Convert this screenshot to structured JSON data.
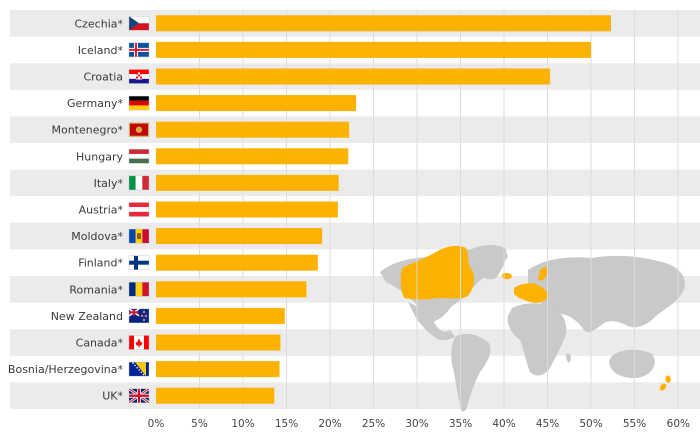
{
  "chart_data": {
    "type": "bar",
    "orientation": "horizontal",
    "categories": [
      "Czechia*",
      "Iceland*",
      "Croatia",
      "Germany*",
      "Montenegro*",
      "Hungary",
      "Italy*",
      "Austria*",
      "Moldova*",
      "Finland*",
      "Romania*",
      "New Zealand",
      "Canada*",
      "Bosnia/Herzegovina*",
      "UK*"
    ],
    "flags": [
      "czechia-flag",
      "iceland-flag",
      "croatia-flag",
      "germany-flag",
      "montenegro-flag",
      "hungary-flag",
      "italy-flag",
      "austria-flag",
      "moldova-flag",
      "finland-flag",
      "romania-flag",
      "new-zealand-flag",
      "canada-flag",
      "bosnia-herzegovina-flag",
      "uk-flag"
    ],
    "values": [
      52.3,
      50.0,
      45.3,
      23.0,
      22.2,
      22.1,
      21.0,
      20.9,
      19.1,
      18.6,
      17.3,
      14.8,
      14.3,
      14.2,
      13.6
    ],
    "xlim": [
      0,
      60
    ],
    "xticks": [
      "0%",
      "5%",
      "10%",
      "15%",
      "20%",
      "25%",
      "30%",
      "35%",
      "40%",
      "45%",
      "50%",
      "55%",
      "60%"
    ],
    "grid": true,
    "colors": {
      "bar": "#FDB100",
      "stripe": "#EBEBEB",
      "grid": "#DCDCDC",
      "map_land": "#C9C9C9",
      "map_highlight": "#FDB100"
    }
  }
}
